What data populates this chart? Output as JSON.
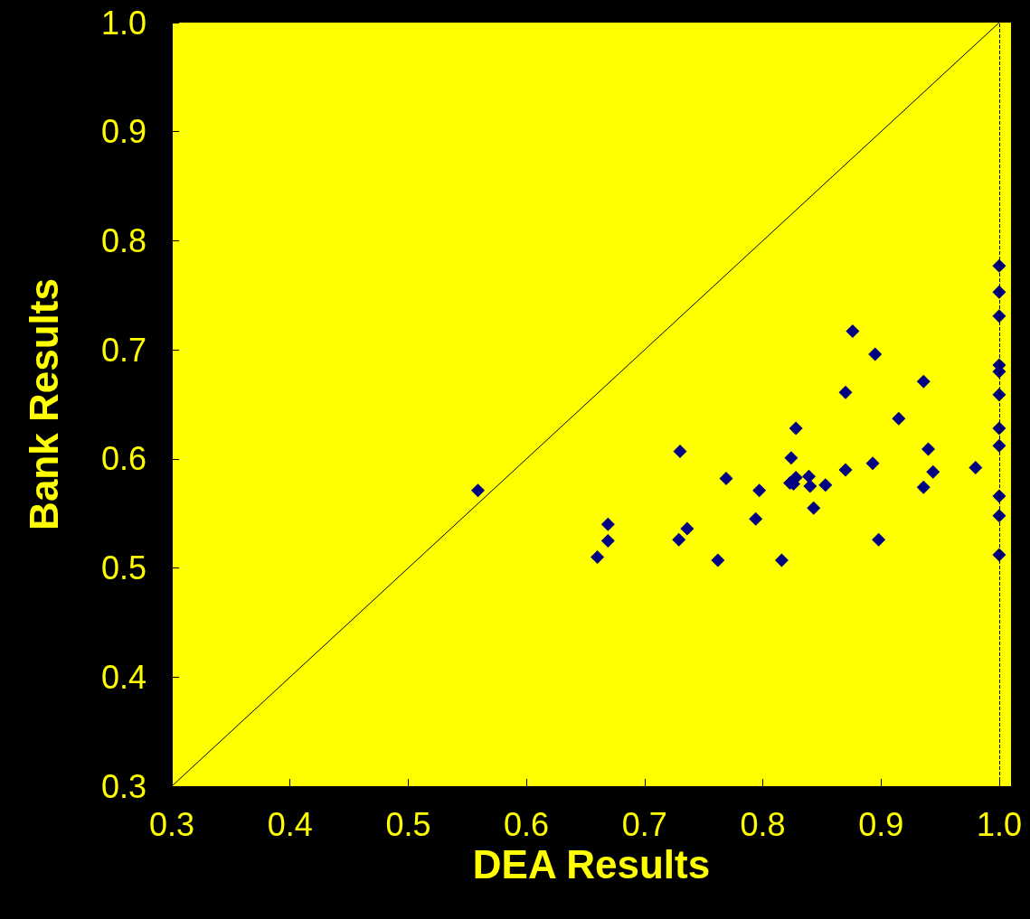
{
  "chart_data": {
    "type": "scatter",
    "xlabel": "DEA Results",
    "ylabel": "Bank Results",
    "xlim": [
      0.3,
      1.01
    ],
    "ylim": [
      0.3,
      1.0
    ],
    "xticks": [
      0.3,
      0.4,
      0.5,
      0.6,
      0.7,
      0.8,
      0.9,
      {
        "value": 1.0,
        "label": "1.0"
      }
    ],
    "yticks": [
      0.3,
      0.4,
      0.5,
      0.6,
      0.7,
      0.8,
      0.9,
      {
        "value": 1.0,
        "label": "1.0"
      }
    ],
    "grid": false,
    "ref_lines": [
      {
        "axis": "x",
        "value": 1.0,
        "color": "#000000",
        "line_style": "dashed"
      }
    ],
    "series": [
      {
        "marker": "diamond",
        "color": "#000080",
        "x": [
          0.559,
          0.73,
          0.769,
          0.669,
          0.669,
          0.66,
          0.736,
          0.729,
          0.762,
          0.876,
          0.895,
          0.936,
          0.87,
          0.915,
          0.828,
          0.94,
          0.824,
          0.893,
          0.87,
          0.944,
          0.98,
          0.828,
          0.839,
          0.823,
          0.826,
          0.84,
          0.853,
          0.936,
          0.797,
          0.843,
          0.794,
          0.898,
          0.816,
          1.0,
          1.0,
          1.0,
          1.0,
          1.0,
          1.0,
          1.0,
          1.0,
          1.0,
          1.0,
          1.0
        ],
        "values": [
          0.571,
          0.607,
          0.582,
          0.54,
          0.525,
          0.51,
          0.536,
          0.526,
          0.507,
          0.717,
          0.696,
          0.671,
          0.661,
          0.637,
          0.628,
          0.609,
          0.601,
          0.596,
          0.59,
          0.588,
          0.592,
          0.583,
          0.584,
          0.578,
          0.577,
          0.575,
          0.576,
          0.574,
          0.571,
          0.555,
          0.545,
          0.526,
          0.507,
          0.777,
          0.753,
          0.731,
          0.686,
          0.68,
          0.659,
          0.628,
          0.612,
          0.566,
          0.548,
          0.512
        ]
      },
      {
        "type": "line",
        "color": "#000000",
        "line_style": "solid",
        "x": [
          0.3,
          1.0
        ],
        "values": [
          0.3,
          1.0
        ]
      }
    ]
  }
}
